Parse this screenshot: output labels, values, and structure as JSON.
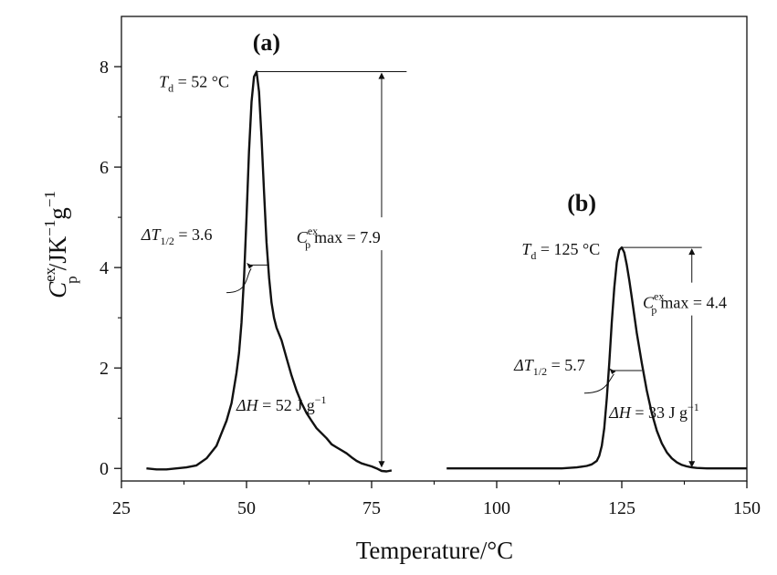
{
  "chart_data": {
    "type": "line",
    "xlabel": "Temperature/°C",
    "ylabel": {
      "symbol": "C",
      "sup": "ex",
      "sub": "p",
      "unit": "/JK",
      "unit_exp1": "−1",
      "unit_g": "g",
      "unit_exp2": "−1"
    },
    "xlim": [
      25,
      150
    ],
    "ylim": [
      -0.25,
      9.0
    ],
    "xticks": [
      25,
      50,
      75,
      100,
      125,
      150
    ],
    "yticks": [
      0,
      2,
      4,
      6,
      8
    ],
    "grid": false,
    "series": [
      {
        "x": [
          30,
          32,
          34,
          36,
          38,
          40,
          42,
          44,
          45,
          46,
          47,
          48,
          48.5,
          49,
          49.5,
          50,
          50.5,
          51,
          51.5,
          52,
          52.5,
          53,
          53.5,
          54,
          54.5,
          55,
          55.5,
          56,
          57,
          58,
          59,
          60,
          61,
          62,
          63,
          64,
          65,
          66,
          67,
          68,
          69,
          70,
          71,
          72,
          73,
          74,
          75,
          76,
          77,
          78,
          79
        ],
        "y": [
          0.0,
          -0.02,
          -0.02,
          0.0,
          0.02,
          0.06,
          0.2,
          0.45,
          0.7,
          0.95,
          1.3,
          1.9,
          2.3,
          2.9,
          3.8,
          5.0,
          6.3,
          7.3,
          7.8,
          7.9,
          7.5,
          6.6,
          5.5,
          4.5,
          3.8,
          3.3,
          3.0,
          2.8,
          2.55,
          2.2,
          1.85,
          1.55,
          1.3,
          1.1,
          0.95,
          0.8,
          0.7,
          0.6,
          0.48,
          0.42,
          0.36,
          0.3,
          0.22,
          0.15,
          0.1,
          0.07,
          0.04,
          0.0,
          -0.05,
          -0.06,
          -0.04
        ]
      },
      {
        "x": [
          90,
          95,
          100,
          105,
          110,
          113,
          116,
          118,
          119,
          120,
          120.5,
          121,
          121.5,
          122,
          122.5,
          123,
          123.5,
          124,
          124.5,
          125,
          125.5,
          126,
          126.5,
          127,
          127.5,
          128,
          129,
          130,
          131,
          132,
          133,
          134,
          135,
          136,
          137,
          138,
          139,
          140,
          142,
          145,
          148,
          150
        ],
        "y": [
          0.0,
          0.0,
          0.0,
          0.0,
          0.0,
          0.0,
          0.02,
          0.05,
          0.08,
          0.15,
          0.25,
          0.45,
          0.8,
          1.4,
          2.1,
          2.9,
          3.6,
          4.1,
          4.35,
          4.4,
          4.3,
          4.05,
          3.75,
          3.4,
          3.05,
          2.7,
          2.1,
          1.55,
          1.1,
          0.75,
          0.5,
          0.32,
          0.2,
          0.12,
          0.07,
          0.04,
          0.02,
          0.01,
          0.0,
          0.0,
          0.0,
          0.0
        ]
      }
    ],
    "panels": [
      {
        "label": "(a)",
        "td_label": "T",
        "td_sub": "d",
        "td_value": " = 52 °C",
        "td_x": 52,
        "td_y": 7.9,
        "width_label": "ΔT",
        "width_sub": "1/2",
        "width_value": " = 3.6",
        "width_x1": 50.5,
        "width_x2": 54.5,
        "width_y": 4.05,
        "cpmax_symbol": "C",
        "cpmax_sup": "ex",
        "cpmax_sub": "p",
        "cpmax_value": "max = 7.9",
        "cpmax_x": 77,
        "cpmax_line_end": 82,
        "dh_label": "ΔH",
        "dh_value": " = 52 J g",
        "dh_exp": "−1"
      },
      {
        "label": "(b)",
        "td_label": "T",
        "td_sub": "d",
        "td_value": " = 125 °C",
        "td_x": 125,
        "td_y": 4.4,
        "width_label": "ΔT",
        "width_sub": "1/2",
        "width_value": " = 5.7",
        "width_x1": 123,
        "width_x2": 129,
        "width_y": 1.95,
        "cpmax_symbol": "C",
        "cpmax_sup": "ex",
        "cpmax_sub": "p",
        "cpmax_value": "max = 4.4",
        "cpmax_x": 139,
        "cpmax_line_end": 141,
        "dh_label": "ΔH",
        "dh_value": " = 33 J g",
        "dh_exp": "−1"
      }
    ]
  }
}
